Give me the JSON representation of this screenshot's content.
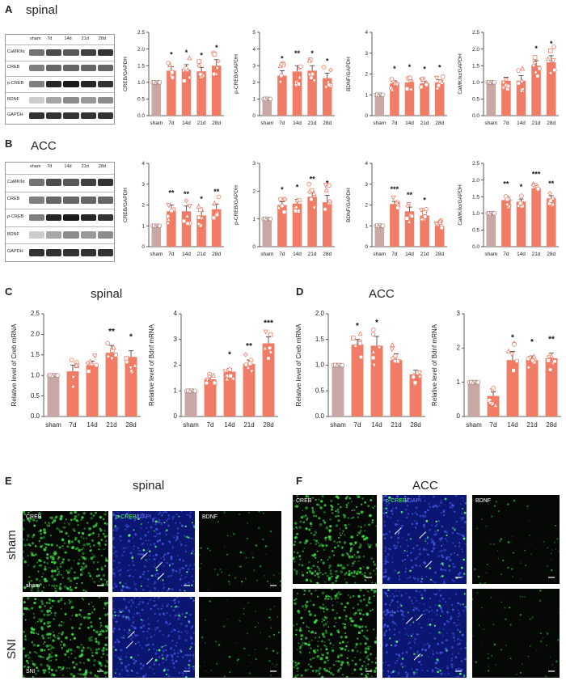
{
  "panels": {
    "A": {
      "letter": "A",
      "title": "spinal",
      "blot": {
        "lanes": [
          "sham",
          "7d",
          "14d",
          "21d",
          "28d"
        ],
        "rows": [
          "CaMKIIα",
          "CREB",
          "p-CREB",
          "BDNF",
          "GAPDH"
        ]
      }
    },
    "B": {
      "letter": "B",
      "title": "ACC",
      "blot": {
        "lanes": [
          "sham",
          "7d",
          "14d",
          "21d",
          "28d"
        ],
        "rows": [
          "CaMKIIα",
          "CREB",
          "p-CREB",
          "BDNF",
          "GAPDH"
        ]
      }
    },
    "C": {
      "letter": "C",
      "title": "spinal"
    },
    "D": {
      "letter": "D",
      "title": "ACC"
    },
    "E": {
      "letter": "E",
      "title": "spinal",
      "labels": {
        "creb": "CREB",
        "pcreb": "p-CREB",
        "slash": "/",
        "dapi": "DAPI",
        "bdnf": "BDNF",
        "sham_tag": "sham",
        "sni_tag": "SNI"
      }
    },
    "F": {
      "letter": "F",
      "title": "ACC",
      "labels": {
        "creb": "CREB",
        "pcreb": "p-CREB",
        "slash": "/",
        "dapi": "DAPI",
        "bdnf": "BDNF"
      }
    },
    "rows_labels": {
      "sham": "sham",
      "sni": "SNI"
    }
  },
  "colors": {
    "sham": "#c9a8a3",
    "treat": "#f07c66",
    "point": "#ffffff"
  },
  "chart_data": [
    {
      "id": "A1",
      "type": "bar",
      "categories": [
        "sham",
        "7d",
        "14d",
        "21d",
        "28d"
      ],
      "values": [
        1.0,
        1.35,
        1.38,
        1.33,
        1.5
      ],
      "errors": [
        0.02,
        0.12,
        0.15,
        0.12,
        0.18
      ],
      "stars": [
        "",
        "*",
        "*",
        "*",
        "*"
      ],
      "ylabel": "CREB/GAPDH",
      "ylim": [
        0,
        2.5
      ],
      "yticks": [
        0.0,
        0.5,
        1.0,
        1.5,
        2.0,
        2.5
      ]
    },
    {
      "id": "A2",
      "type": "bar",
      "categories": [
        "sham",
        "7d",
        "14d",
        "21d",
        "28d"
      ],
      "values": [
        1.0,
        2.4,
        2.65,
        2.7,
        2.25
      ],
      "errors": [
        0.03,
        0.3,
        0.35,
        0.3,
        0.3
      ],
      "stars": [
        "",
        "*",
        "**",
        "*",
        "*"
      ],
      "ylabel": "p-CREB/GAPDH",
      "ylim": [
        0,
        5
      ],
      "yticks": [
        0,
        1,
        2,
        3,
        4,
        5
      ]
    },
    {
      "id": "A3",
      "type": "bar",
      "categories": [
        "sham",
        "7d",
        "14d",
        "21d",
        "28d"
      ],
      "values": [
        1.0,
        1.55,
        1.6,
        1.55,
        1.6
      ],
      "errors": [
        0.02,
        0.12,
        0.15,
        0.1,
        0.12
      ],
      "stars": [
        "",
        "*",
        "*",
        "*",
        "*"
      ],
      "ylabel": "BDNF/GAPDH",
      "ylim": [
        0,
        4
      ],
      "yticks": [
        0,
        1,
        2,
        3,
        4
      ]
    },
    {
      "id": "A4",
      "type": "bar",
      "categories": [
        "sham",
        "7d",
        "14d",
        "21d",
        "28d"
      ],
      "values": [
        1.0,
        1.05,
        1.05,
        1.5,
        1.6
      ],
      "errors": [
        0.02,
        0.1,
        0.15,
        0.15,
        0.2
      ],
      "stars": [
        "",
        "",
        "",
        "*",
        "*"
      ],
      "ylabel": "CaMKIIα/GAPDH",
      "ylim": [
        0,
        2.5
      ],
      "yticks": [
        0.0,
        0.5,
        1.0,
        1.5,
        2.0,
        2.5
      ]
    },
    {
      "id": "B1",
      "type": "bar",
      "categories": [
        "sham",
        "7d",
        "14d",
        "21d",
        "28d"
      ],
      "values": [
        1.0,
        1.7,
        1.7,
        1.5,
        1.8
      ],
      "errors": [
        0.02,
        0.3,
        0.25,
        0.2,
        0.25
      ],
      "stars": [
        "",
        "**",
        "**",
        "*",
        "**"
      ],
      "ylabel": "CREB/GAPDH",
      "ylim": [
        0,
        4
      ],
      "yticks": [
        0,
        1,
        2,
        3,
        4
      ]
    },
    {
      "id": "B2",
      "type": "bar",
      "categories": [
        "sham",
        "7d",
        "14d",
        "21d",
        "28d"
      ],
      "values": [
        1.0,
        1.5,
        1.55,
        1.8,
        1.6
      ],
      "errors": [
        0.02,
        0.12,
        0.15,
        0.2,
        0.25
      ],
      "stars": [
        "",
        "*",
        "*",
        "**",
        "*"
      ],
      "ylabel": "p-CREB/GAPDH",
      "ylim": [
        0,
        3
      ],
      "yticks": [
        0,
        1,
        2,
        3
      ]
    },
    {
      "id": "B3",
      "type": "bar",
      "categories": [
        "sham",
        "7d",
        "14d",
        "21d",
        "28d"
      ],
      "values": [
        1.0,
        2.05,
        1.7,
        1.5,
        1.0
      ],
      "errors": [
        0.02,
        0.12,
        0.2,
        0.15,
        0.1
      ],
      "stars": [
        "",
        "***",
        "**",
        "*",
        ""
      ],
      "ylabel": "BDNF/GAPDH",
      "ylim": [
        0,
        4
      ],
      "yticks": [
        0,
        1,
        2,
        3,
        4
      ]
    },
    {
      "id": "B4",
      "type": "bar",
      "categories": [
        "sham",
        "7d",
        "14d",
        "21d",
        "28d"
      ],
      "values": [
        1.0,
        1.4,
        1.35,
        1.75,
        1.45
      ],
      "errors": [
        0.02,
        0.12,
        0.08,
        0.06,
        0.08
      ],
      "stars": [
        "",
        "**",
        "*",
        "***",
        "**"
      ],
      "ylabel": "CaMKIIα/GAPDH",
      "ylim": [
        0,
        2.5
      ],
      "yticks": [
        0.0,
        0.5,
        1.0,
        1.5,
        2.0,
        2.5
      ]
    },
    {
      "id": "C1",
      "type": "bar",
      "categories": [
        "sham",
        "7d",
        "14d",
        "21d",
        "28d"
      ],
      "values": [
        1.0,
        1.1,
        1.25,
        1.55,
        1.45
      ],
      "errors": [
        0.02,
        0.15,
        0.1,
        0.18,
        0.15
      ],
      "stars": [
        "",
        "",
        "",
        "**",
        "*"
      ],
      "ylabel": "Relative level of Creb mRNA",
      "ylim": [
        0,
        2.5
      ],
      "yticks": [
        0.0,
        0.5,
        1.0,
        1.5,
        2.0,
        2.5
      ]
    },
    {
      "id": "C2",
      "type": "bar",
      "categories": [
        "sham",
        "7d",
        "14d",
        "21d",
        "28d"
      ],
      "values": [
        1.0,
        1.45,
        1.75,
        2.05,
        2.85
      ],
      "errors": [
        0.02,
        0.1,
        0.12,
        0.15,
        0.25
      ],
      "stars": [
        "",
        "",
        "*",
        "**",
        "***"
      ],
      "ylabel": "Relative level of Bdnf mRNA",
      "ylim": [
        0,
        4
      ],
      "yticks": [
        0,
        1,
        2,
        3,
        4
      ]
    },
    {
      "id": "D1",
      "type": "bar",
      "categories": [
        "sham",
        "7d",
        "14d",
        "21d",
        "28d"
      ],
      "values": [
        1.0,
        1.4,
        1.38,
        1.1,
        0.82
      ],
      "errors": [
        0.02,
        0.1,
        0.18,
        0.12,
        0.08
      ],
      "stars": [
        "",
        "*",
        "*",
        "",
        ""
      ],
      "ylabel": "Relative level of Creb mRNA",
      "ylim": [
        0,
        2.0
      ],
      "yticks": [
        0.0,
        0.5,
        1.0,
        1.5,
        2.0
      ]
    },
    {
      "id": "D2",
      "type": "bar",
      "categories": [
        "sham",
        "7d",
        "14d",
        "21d",
        "28d"
      ],
      "values": [
        1.0,
        0.6,
        1.65,
        1.65,
        1.7
      ],
      "errors": [
        0.02,
        0.12,
        0.25,
        0.12,
        0.15
      ],
      "stars": [
        "",
        "",
        "*",
        "*",
        "**"
      ],
      "ylabel": "Relative level of Bdnf mRNA",
      "ylim": [
        0,
        3
      ],
      "yticks": [
        0,
        1,
        2,
        3
      ]
    }
  ]
}
